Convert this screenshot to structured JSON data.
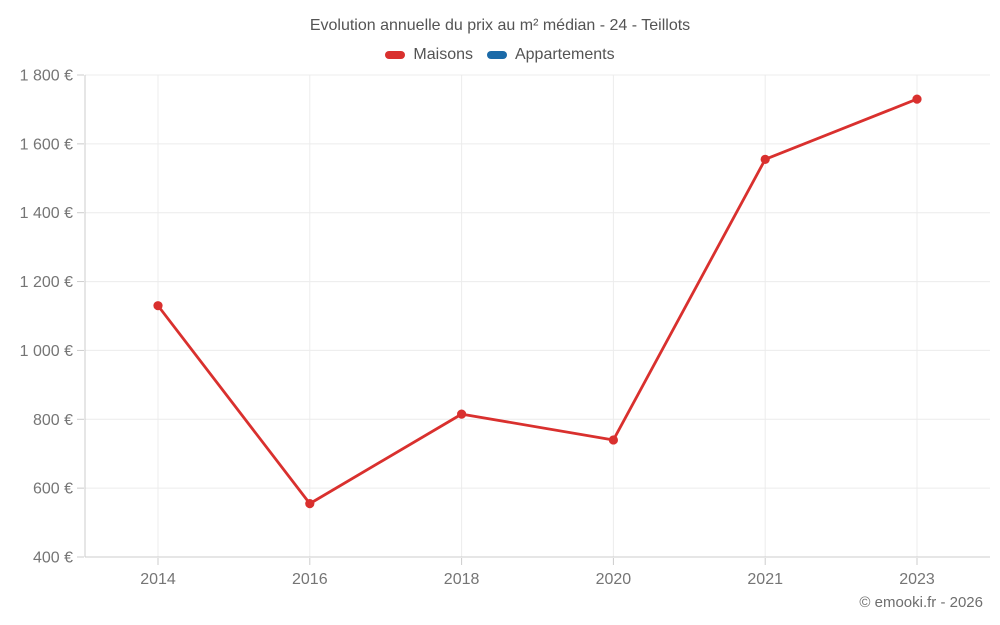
{
  "footer": {
    "copyright": "© emooki.fr - 2026"
  },
  "chart_data": {
    "type": "line",
    "title": "Evolution annuelle du prix au m² médian - 24 - Teillots",
    "categories": [
      "2014",
      "2016",
      "2018",
      "2020",
      "2021",
      "2023"
    ],
    "series": [
      {
        "name": "Maisons",
        "color": "#d9302e",
        "values": [
          1130,
          555,
          815,
          740,
          1555,
          1730
        ]
      },
      {
        "name": "Appartements",
        "color": "#1b6aa8",
        "values": []
      }
    ],
    "ylim": [
      400,
      1800
    ],
    "ytick_step": 200,
    "y_suffix": " €",
    "grid": true,
    "legend_position": "top",
    "colors": {
      "gridline": "#ececec",
      "axis_line": "#cccccc",
      "tick_label": "#757575"
    }
  }
}
